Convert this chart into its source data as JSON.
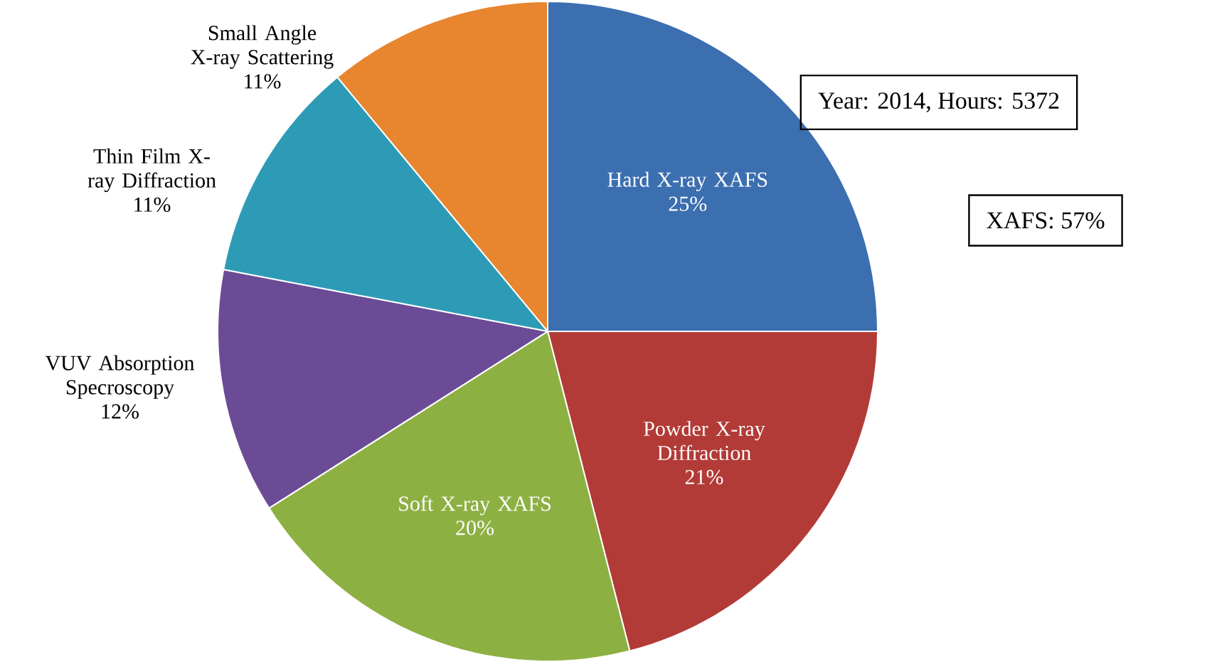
{
  "chart_data": {
    "type": "pie",
    "categories": [
      "Hard X-ray XAFS",
      "Powder X-ray Diffraction",
      "Soft X-ray XAFS",
      "VUV Absorption Specroscopy",
      "Thin Film X-ray Diffraction",
      "Small Angle X-ray Scattering"
    ],
    "values": [
      25,
      21,
      20,
      12,
      11,
      11
    ],
    "value_labels": [
      "25%",
      "21%",
      "20%",
      "12%",
      "11%",
      "11%"
    ],
    "colors": [
      "#3b6fb0",
      "#b23b37",
      "#8db043",
      "#6b4b96",
      "#2e9bb6",
      "#e8852f"
    ],
    "annotations": [
      "Year: 2014, Hours: 5372",
      "XAFS: 57%"
    ]
  }
}
